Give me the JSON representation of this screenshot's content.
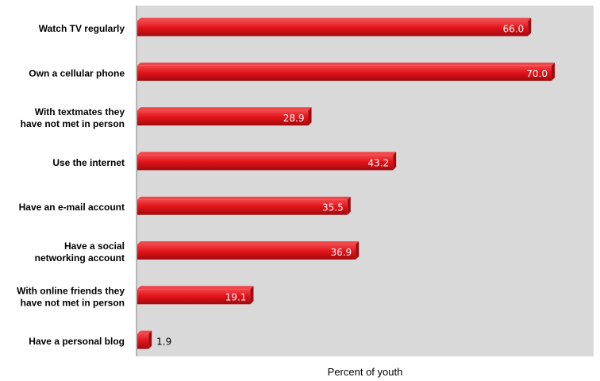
{
  "chart_data": {
    "type": "bar",
    "orientation": "horizontal",
    "categories": [
      "Watch TV regularly",
      "Own a cellular phone",
      "With textmates they have not met in person",
      "Use the internet",
      "Have an e-mail account",
      "Have a social networking account",
      "With online friends they have not met in person",
      "Have a personal blog"
    ],
    "category_lines": [
      [
        "Watch TV regularly"
      ],
      [
        "Own a cellular phone"
      ],
      [
        "With textmates they",
        "have not met in person"
      ],
      [
        "Use the internet"
      ],
      [
        "Have an e-mail account"
      ],
      [
        "Have a social",
        "networking account"
      ],
      [
        "With online friends they",
        "have not met in person"
      ],
      [
        "Have a personal blog"
      ]
    ],
    "values": [
      66.0,
      70.0,
      28.9,
      43.2,
      35.5,
      36.9,
      19.1,
      1.9
    ],
    "value_labels": [
      "66.0",
      "70.0",
      "28.9",
      "43.2",
      "35.5",
      "36.9",
      "19.1",
      "1.9"
    ],
    "title": "",
    "xlabel": "Percent of youth",
    "ylabel": "",
    "xlim": [
      0,
      78
    ],
    "grid": false,
    "legend": "none",
    "colors": {
      "bar": "#e3141a",
      "bar_dark": "#a00a0e",
      "bar_light": "#f0464a",
      "plot_background": "#d9d9d9",
      "axis": "#7f7f7f",
      "label_inside": "#ffffff",
      "label_outside": "#000000"
    }
  }
}
